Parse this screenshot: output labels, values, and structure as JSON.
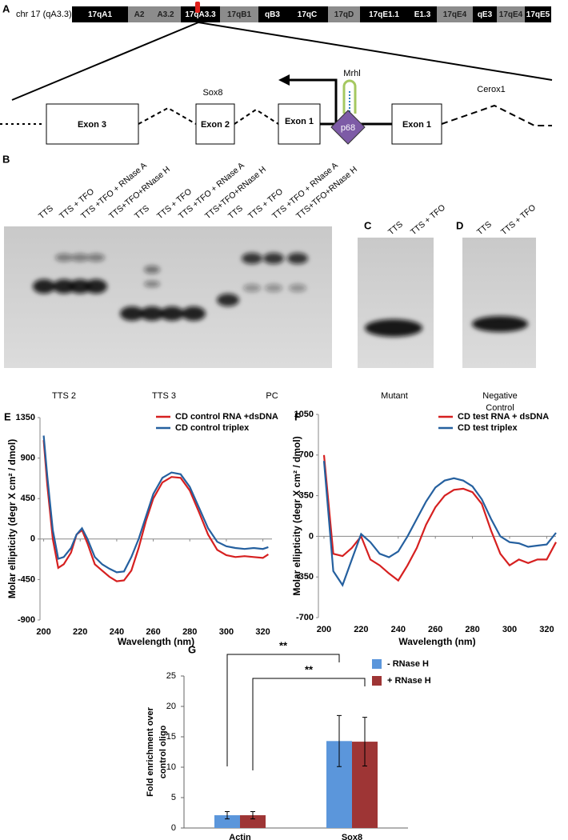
{
  "panel_labels": [
    "A",
    "B",
    "C",
    "D",
    "E",
    "F",
    "G"
  ],
  "chromosome": {
    "label": "chr 17 (qA3.3)",
    "bands": [
      {
        "name": "17qA1",
        "color": "#000000"
      },
      {
        "name": "A2",
        "color": "#8c8c8c"
      },
      {
        "name": "A3.2",
        "color": "#8c8c8c"
      },
      {
        "name": "17qA3.3",
        "color": "#000000"
      },
      {
        "name": "17qB1",
        "color": "#8c8c8c"
      },
      {
        "name": "qB3",
        "color": "#000000"
      },
      {
        "name": "17qC",
        "color": "#000000"
      },
      {
        "name": "17qD",
        "color": "#8c8c8c"
      },
      {
        "name": "17qE1.1",
        "color": "#000000"
      },
      {
        "name": "E1.3",
        "color": "#000000"
      },
      {
        "name": "17qE4",
        "color": "#8c8c8c"
      },
      {
        "name": "qE3",
        "color": "#000000"
      },
      {
        "name": "17qE4",
        "color": "#8c8c8c"
      },
      {
        "name": "17qE5",
        "color": "#000000"
      }
    ]
  },
  "gene_map": {
    "sox8": "Sox8",
    "cerox1": "Cerox1",
    "mrhl": "Mrhl",
    "p68": "p68",
    "exons": [
      "Exon 3",
      "Exon 2",
      "Exon 1",
      "Exon 1"
    ]
  },
  "gel_b": {
    "lanes": [
      "TTS",
      "TTS + TFO",
      "TTS +TFO + RNase A",
      "TTS+TFO+RNase H",
      "TTS",
      "TTS + TFO",
      "TTS +TFO + RNase A",
      "TTS+TFO+RNase H",
      "TTS",
      "TTS + TFO",
      "TTS +TFO + RNase A",
      "TTS+TFO+RNase H"
    ],
    "groups": [
      "TTS 2",
      "TTS 3",
      "PC"
    ]
  },
  "gel_c": {
    "lanes": [
      "TTS",
      "TTS + TFO"
    ],
    "caption": "Mutant"
  },
  "gel_d": {
    "lanes": [
      "TTS",
      "TTS + TFO"
    ],
    "caption": [
      "Negative",
      "Control"
    ]
  },
  "chart_data": [
    {
      "type": "line",
      "xlabel": "Wavelength (nm)",
      "ylabel": "Molar ellipticity (degr X cm² / dmol)",
      "x": [
        200,
        202,
        205,
        208,
        211,
        215,
        218,
        221,
        224,
        228,
        232,
        236,
        240,
        244,
        248,
        252,
        256,
        260,
        265,
        270,
        275,
        280,
        285,
        290,
        295,
        300,
        305,
        310,
        315,
        320,
        323
      ],
      "xlim": [
        198,
        325
      ],
      "xticks": [
        200,
        220,
        240,
        260,
        280,
        300,
        320
      ],
      "ylim": [
        -900,
        1350
      ],
      "yticks": [
        -900,
        -450,
        0,
        450,
        900,
        1350
      ],
      "series": [
        {
          "name": "CD control RNA +dsDNA",
          "color": "#d62020",
          "values": [
            1100,
            600,
            0,
            -320,
            -280,
            -150,
            50,
            100,
            -50,
            -280,
            -350,
            -420,
            -470,
            -460,
            -350,
            -100,
            200,
            450,
            630,
            690,
            680,
            540,
            300,
            50,
            -120,
            -180,
            -200,
            -190,
            -200,
            -210,
            -170
          ]
        },
        {
          "name": "CD control triplex",
          "color": "#25609f",
          "values": [
            1150,
            700,
            100,
            -220,
            -200,
            -100,
            50,
            120,
            0,
            -200,
            -280,
            -330,
            -370,
            -360,
            -200,
            0,
            250,
            500,
            680,
            740,
            720,
            580,
            350,
            120,
            -30,
            -80,
            -100,
            -110,
            -100,
            -110,
            -90
          ]
        }
      ]
    },
    {
      "type": "line",
      "xlabel": "Wavelength (nm)",
      "ylabel": "Molar ellipticity (degr X cm² / dmol)",
      "x": [
        200,
        205,
        210,
        215,
        220,
        225,
        230,
        235,
        240,
        245,
        250,
        255,
        260,
        265,
        270,
        275,
        280,
        285,
        290,
        295,
        300,
        305,
        310,
        315,
        320,
        325
      ],
      "xlim": [
        197,
        325
      ],
      "xticks": [
        200,
        220,
        240,
        260,
        280,
        300,
        320
      ],
      "ylim": [
        -700,
        1050
      ],
      "yticks": [
        -700,
        -350,
        0,
        350,
        700,
        1050
      ],
      "series": [
        {
          "name": "CD test RNA + dsDNA",
          "color": "#d62020",
          "values": [
            700,
            -150,
            -170,
            -100,
            0,
            -200,
            -250,
            -320,
            -380,
            -250,
            -100,
            100,
            250,
            350,
            400,
            410,
            380,
            280,
            50,
            -150,
            -250,
            -200,
            -230,
            -200,
            -200,
            -50
          ]
        },
        {
          "name": "CD test triplex",
          "color": "#25609f",
          "values": [
            650,
            -300,
            -420,
            -200,
            20,
            -50,
            -150,
            -180,
            -130,
            0,
            150,
            300,
            420,
            480,
            500,
            480,
            430,
            320,
            150,
            0,
            -50,
            -60,
            -90,
            -80,
            -70,
            30
          ]
        }
      ]
    },
    {
      "type": "bar",
      "categories": [
        "Actin",
        "Sox8"
      ],
      "ylabel": [
        "Fold enrichment over",
        "control oligo"
      ],
      "ylim": [
        0,
        25
      ],
      "yticks": [
        0,
        5,
        10,
        15,
        20,
        25
      ],
      "series": [
        {
          "name": "- RNase H",
          "color": "#5b96db",
          "values": [
            2.1,
            14.3
          ],
          "errors": [
            0.6,
            4.2
          ]
        },
        {
          "name": "+ RNase H",
          "color": "#9e3535",
          "values": [
            2.1,
            14.2
          ],
          "errors": [
            0.6,
            4.0
          ]
        }
      ],
      "annotations": [
        "**",
        "**"
      ]
    }
  ]
}
